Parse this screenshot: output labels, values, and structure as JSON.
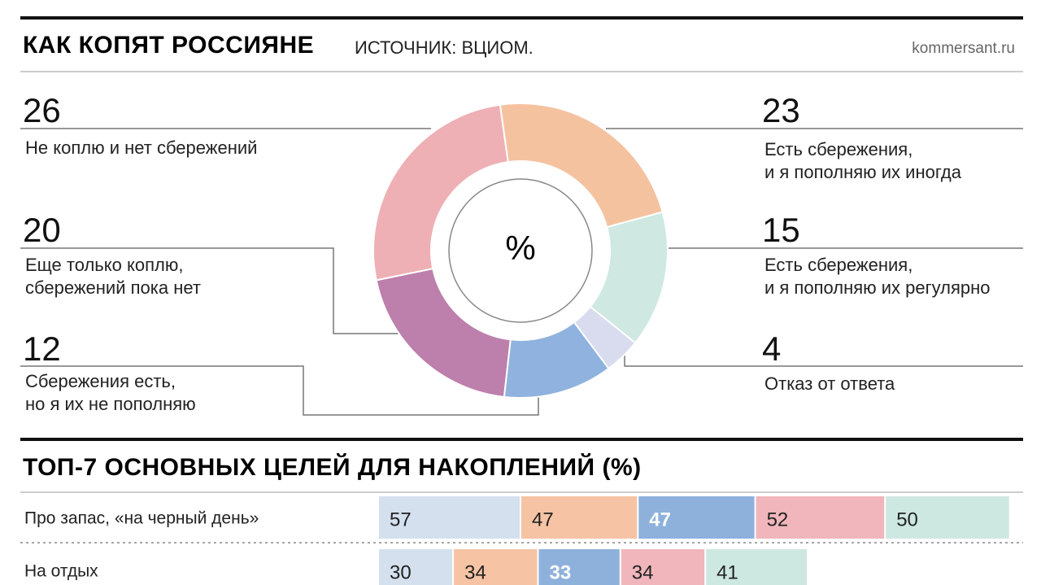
{
  "chart_data": [
    {
      "type": "pie",
      "title": "КАК КОПЯТ РОССИЯНЕ",
      "subtitle": "ИСТОЧНИК: ВЦИОМ.",
      "source": "kommersant.ru",
      "center_label": "%",
      "categories": [
        "Есть сбережения,\nи я пополняю их иногда",
        "Есть сбережения,\nи я пополняю их регулярно",
        "Отказ от ответа",
        "Сбережения есть,\nно я их не пополняю",
        "Еще только коплю,\nсбережений пока нет",
        "Не коплю и нет сбережений"
      ],
      "values": [
        23,
        15,
        4,
        12,
        20,
        26
      ],
      "colors": [
        "#f5c2a0",
        "#cfe8e2",
        "#d8dcee",
        "#8fb3de",
        "#bd7fab",
        "#eeb0b4"
      ]
    },
    {
      "type": "bar",
      "orientation": "horizontal",
      "stacked": true,
      "title": "ТОП-7 ОСНОВНЫХ ЦЕЛЕЙ ДЛЯ НАКОПЛЕНИЙ (%)",
      "categories": [
        "Про запас, «на черный день»",
        "На отдых"
      ],
      "series": [
        {
          "color": "#d5e0ef",
          "values": [
            57,
            30
          ]
        },
        {
          "color": "#f6c4a4",
          "values": [
            47,
            34
          ]
        },
        {
          "color": "#8eb1dc",
          "values": [
            47,
            33
          ]
        },
        {
          "color": "#f0b6bb",
          "values": [
            52,
            34
          ]
        },
        {
          "color": "#cde8e1",
          "values": [
            50,
            41
          ]
        }
      ]
    }
  ]
}
